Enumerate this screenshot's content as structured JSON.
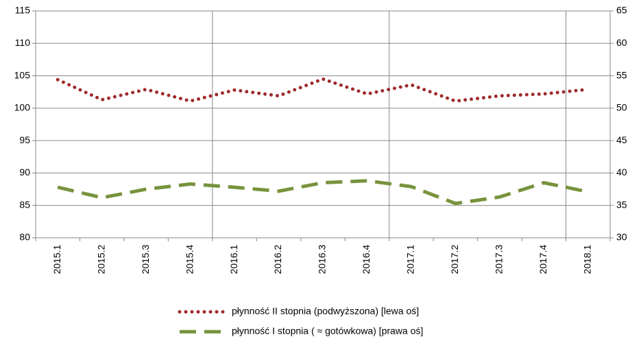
{
  "chart_data": {
    "type": "line",
    "categories": [
      "2015.1",
      "2015.2",
      "2015.3",
      "2015.4",
      "2016.1",
      "2016.2",
      "2016.3",
      "2016.4",
      "2017.1",
      "2017.2",
      "2017.3",
      "2017.4",
      "2018.1"
    ],
    "series": [
      {
        "name": "płynność II stopnia (podwyższona) [lewa oś]",
        "color": "#9e2a2b",
        "style": "dotted",
        "values": [
          104.4,
          101.3,
          102.9,
          101.1,
          102.8,
          101.9,
          104.5,
          102.2,
          103.6,
          101.1,
          101.9,
          102.2,
          102.9
        ]
      },
      {
        "name": "płynność I stopnia ( ≈ gotówkowa) [prawa oś]",
        "color": "#77933c",
        "style": "dashed",
        "axis": "y2",
        "values": [
          37.8,
          36.2,
          37.5,
          38.3,
          37.8,
          37.2,
          38.5,
          38.8,
          37.9,
          35.3,
          36.3,
          38.5,
          37.1
        ]
      }
    ],
    "ylim": [
      80,
      115
    ],
    "yticks": [
      80,
      85,
      90,
      95,
      100,
      105,
      110,
      115
    ],
    "y2lim": [
      30,
      65
    ],
    "y2ticks": [
      30,
      35,
      40,
      45,
      50,
      55,
      60,
      65
    ],
    "grid": true,
    "legend": "bottom"
  }
}
